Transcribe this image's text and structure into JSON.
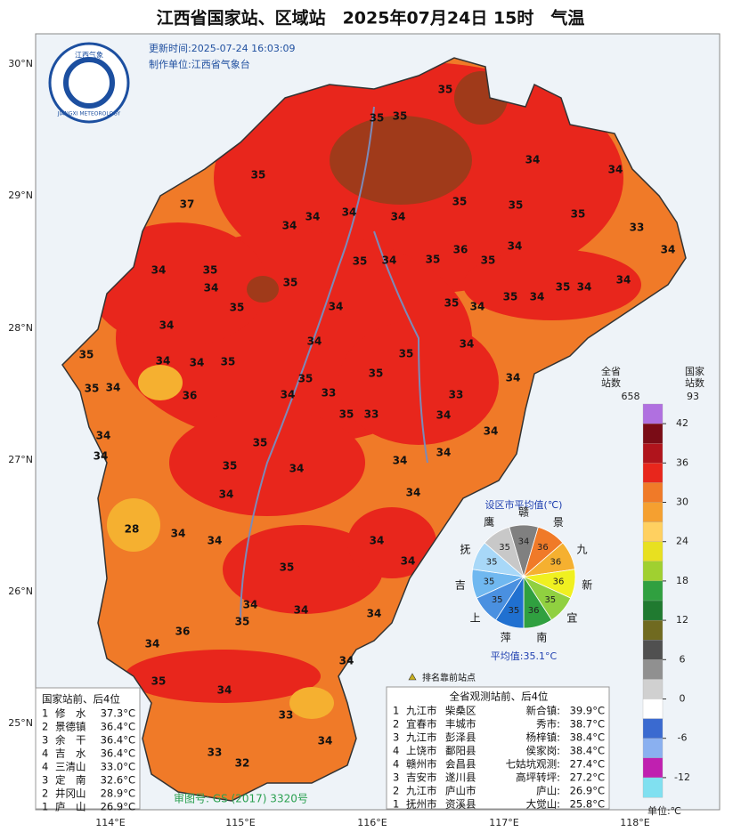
{
  "title": "江西省国家站、区域站　2025年07月24日 15时　气温",
  "update_time": "更新时间:2025-07-24 16:03:09",
  "producer": "制作单位:江西省气象台",
  "logo": {
    "cn": "江西气象",
    "en": "JIANGXI METEOROLOGY"
  },
  "lat_labels": [
    "30°N",
    "29°N",
    "28°N",
    "27°N",
    "26°N",
    "25°N"
  ],
  "lon_labels": [
    "114°E",
    "115°E",
    "116°E",
    "117°E",
    "118°E"
  ],
  "stations": [
    35,
    35,
    35,
    34,
    34,
    35,
    37,
    35,
    35,
    35,
    33,
    34,
    34,
    34,
    34,
    36,
    34,
    34,
    34,
    35,
    35,
    35,
    34,
    35,
    35,
    34,
    34,
    35,
    34,
    35,
    34,
    35,
    34,
    34,
    34,
    35,
    35,
    34,
    34,
    34,
    35,
    34,
    35,
    34,
    35,
    35,
    34,
    34,
    35,
    33,
    33,
    35,
    33,
    34,
    34,
    36,
    35,
    35,
    34,
    34,
    34,
    34,
    34,
    28,
    34,
    34,
    34,
    35,
    34,
    34,
    34,
    34,
    35,
    36,
    34,
    34,
    35,
    34,
    33,
    34,
    33,
    32,
    34,
    34
  ],
  "pie": {
    "title": "设区市平均值(℃)",
    "average": "平均值:35.1°C",
    "cities": [
      {
        "name": "赣",
        "value": 34,
        "color": "#808080"
      },
      {
        "name": "景",
        "value": 36,
        "color": "#f07a28"
      },
      {
        "name": "九",
        "value": 36,
        "color": "#f5b030"
      },
      {
        "name": "新",
        "value": 36,
        "color": "#f0f020"
      },
      {
        "name": "宜",
        "value": 35,
        "color": "#90d040"
      },
      {
        "name": "南",
        "value": 36,
        "color": "#30a040"
      },
      {
        "name": "萍",
        "value": 35,
        "color": "#2070d0"
      },
      {
        "name": "上",
        "value": 35,
        "color": "#4a90e0"
      },
      {
        "name": "吉",
        "value": 35,
        "color": "#70b8f0"
      },
      {
        "name": "抚",
        "value": 35,
        "color": "#a8d8f8"
      },
      {
        "name": "鹰",
        "value": 35,
        "color": "#c8c8c8"
      }
    ]
  },
  "colorbar": {
    "province_count_label": "全省\n站数",
    "province_count": "658",
    "national_count_label": "国家\n站数",
    "national_count": "93",
    "unit": "单位:℃",
    "ticks": [
      42,
      36,
      30,
      24,
      18,
      12,
      6,
      0,
      -6,
      -12
    ],
    "lim": [
      45,
      -15
    ],
    "colors": [
      "#b070e0",
      "#7a0c16",
      "#b0141c",
      "#e8261c",
      "#f07a28",
      "#f5a030",
      "#ffd060",
      "#e8e020",
      "#a0d030",
      "#30a040",
      "#207a30",
      "#706a20",
      "#505050",
      "#909090",
      "#d0d0d0",
      "#ffffff",
      "#3a6ad0",
      "#8ab0f0",
      "#c020b0",
      "#80e0f0"
    ]
  },
  "legend_marker": "排名靠前站点",
  "national_rank": {
    "header": "国家站前、后4位",
    "rows": [
      [
        "1",
        "修　水",
        "37.3°C"
      ],
      [
        "2",
        "景德镇",
        "36.4°C"
      ],
      [
        "3",
        "余　干",
        "36.4°C"
      ],
      [
        "4",
        "吉　水",
        "36.4°C"
      ],
      [
        "4",
        "三清山",
        "33.0°C"
      ],
      [
        "3",
        "定　南",
        "32.6°C"
      ],
      [
        "2",
        "井冈山",
        "28.9°C"
      ],
      [
        "1",
        "庐　山",
        "26.9°C"
      ]
    ]
  },
  "province_rank": {
    "header": "全省观测站前、后4位",
    "rows": [
      [
        "1",
        "九江市",
        "柴桑区",
        "新合镇:",
        "39.9°C"
      ],
      [
        "2",
        "宜春市",
        "丰城市",
        "秀市:",
        "38.7°C"
      ],
      [
        "3",
        "九江市",
        "彭泽县",
        "杨梓镇:",
        "38.4°C"
      ],
      [
        "4",
        "上饶市",
        "鄱阳县",
        "侯家岗:",
        "38.4°C"
      ],
      [
        "4",
        "赣州市",
        "会昌县",
        "七姑坑观测:",
        "27.4°C"
      ],
      [
        "3",
        "吉安市",
        "遂川县",
        "高坪转坪:",
        "27.2°C"
      ],
      [
        "2",
        "九江市",
        "庐山市",
        "庐山:",
        "26.9°C"
      ],
      [
        "1",
        "抚州市",
        "资溪县",
        "大觉山:",
        "25.8°C"
      ]
    ]
  },
  "approval": "审图号: GS (2017) 3320号"
}
